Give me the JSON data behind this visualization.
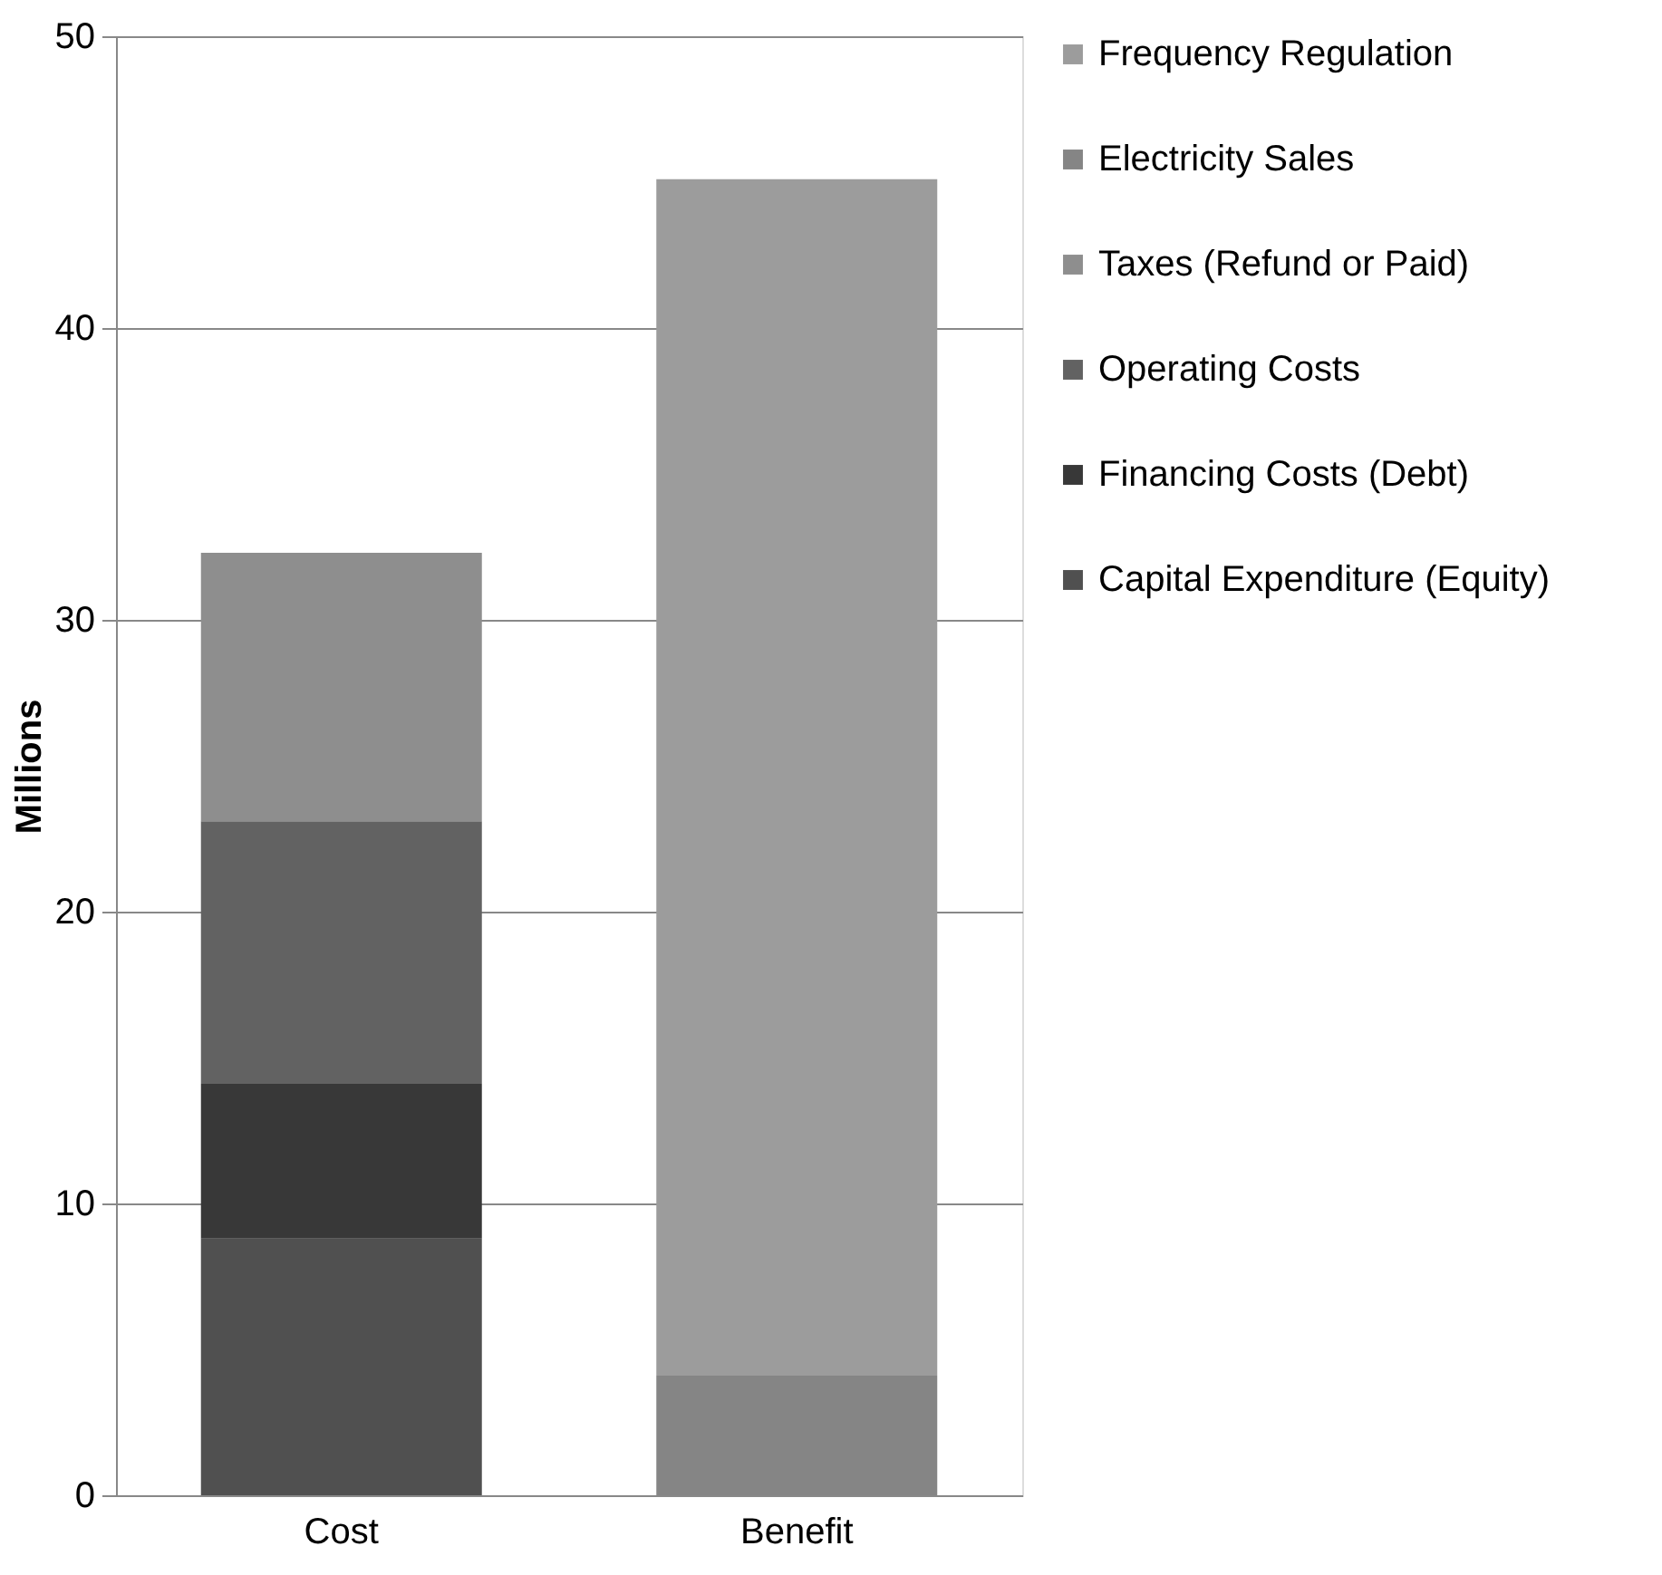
{
  "chart_data": {
    "type": "bar",
    "stacked": true,
    "ylabel": "Millions",
    "categories": [
      "Cost",
      "Benefit"
    ],
    "series": [
      {
        "name": "Capital Expenditure (Equity)",
        "color": "#505050",
        "values": [
          8.8,
          null
        ]
      },
      {
        "name": "Financing Costs (Debt)",
        "color": "#383838",
        "values": [
          5.3,
          null
        ]
      },
      {
        "name": "Operating Costs",
        "color": "#626262",
        "values": [
          9.0,
          null
        ]
      },
      {
        "name": "Taxes (Refund or Paid)",
        "color": "#8e8e8e",
        "values": [
          9.2,
          null
        ]
      },
      {
        "name": "Electricity Sales",
        "color": "#858585",
        "values": [
          null,
          4.1
        ]
      },
      {
        "name": "Frequency Regulation",
        "color": "#9c9c9c",
        "values": [
          null,
          41.0
        ]
      }
    ],
    "ylim": [
      0,
      50
    ],
    "yticks": [
      0,
      10,
      20,
      30,
      40,
      50
    ],
    "grid": "y",
    "legend": "right"
  }
}
